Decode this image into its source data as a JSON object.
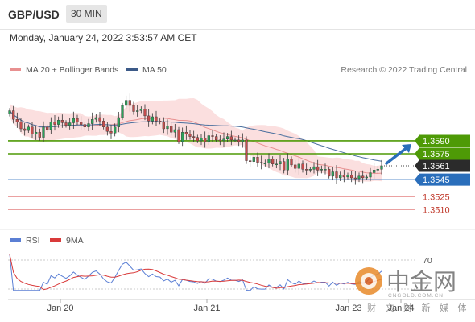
{
  "header": {
    "pair": "GBP/USD",
    "timeframe": "30 MIN"
  },
  "timestamp": "Monday, January 24, 2022 3:53:57 AM CET",
  "legend": {
    "bollinger": "MA 20 + Bollinger Bands",
    "ma50": "MA 50",
    "credit": "Research © 2022 Trading Central"
  },
  "rsi_legend": {
    "rsi": "RSI",
    "ma9": "9MA"
  },
  "watermark": {
    "logo": "中金网",
    "domain": "CNGOLD.COM.CN",
    "tagline": "财 文 财 新 媒 体"
  },
  "colors": {
    "green": "#4e9a06",
    "blue": "#2a6ebb",
    "red": "#d84c4c",
    "current": "#2b2b2b",
    "bullish": "#2ba35a",
    "bearish": "#c44d4d",
    "band": "#fbdcdc",
    "ma20": "#e89090",
    "ma50": "#4a6f9e",
    "rsi": "#5b7fd4",
    "ma9": "#d93a3a"
  },
  "chart_data": [
    {
      "type": "candlestick",
      "title": "GBP/USD",
      "x_labels": [
        "Jan 20",
        "Jan 21",
        "Jan 23",
        "Jan 24"
      ],
      "ylim": [
        1.349,
        1.366
      ],
      "levels": [
        {
          "value": 1.359,
          "label": "1.3590",
          "kind": "resistance"
        },
        {
          "value": 1.3575,
          "label": "1.3575",
          "kind": "resistance"
        },
        {
          "value": 1.3561,
          "label": "1.3561",
          "kind": "current"
        },
        {
          "value": 1.3545,
          "label": "1.3545",
          "kind": "pivot"
        },
        {
          "value": 1.3525,
          "label": "1.3525",
          "kind": "support"
        },
        {
          "value": 1.351,
          "label": "1.3510",
          "kind": "support"
        }
      ],
      "close": [
        1.3625,
        1.3615,
        1.3612,
        1.3604,
        1.3602,
        1.3606,
        1.3598,
        1.36,
        1.3594,
        1.3606,
        1.3603,
        1.3612,
        1.3609,
        1.3614,
        1.3611,
        1.3608,
        1.3611,
        1.3616,
        1.3612,
        1.3609,
        1.3606,
        1.361,
        1.3615,
        1.3617,
        1.3613,
        1.3606,
        1.3601,
        1.3599,
        1.3606,
        1.3617,
        1.3631,
        1.3637,
        1.3631,
        1.3624,
        1.3625,
        1.3627,
        1.3619,
        1.3613,
        1.3618,
        1.3613,
        1.3612,
        1.3604,
        1.3607,
        1.36,
        1.3603,
        1.3589,
        1.36,
        1.3598,
        1.3595,
        1.3594,
        1.359,
        1.3593,
        1.3589,
        1.3596,
        1.3595,
        1.3591,
        1.359,
        1.3592,
        1.3595,
        1.3591,
        1.3591,
        1.3589,
        1.3591,
        1.3567,
        1.3566,
        1.3571,
        1.3565,
        1.3564,
        1.3564,
        1.3569,
        1.3563,
        1.3563,
        1.3566,
        1.3556,
        1.3569,
        1.3562,
        1.3558,
        1.3563,
        1.3557,
        1.3556,
        1.3557,
        1.356,
        1.3556,
        1.3557,
        1.3557,
        1.3549,
        1.3554,
        1.3547,
        1.355,
        1.3548,
        1.355,
        1.3547,
        1.3546,
        1.3549,
        1.3547,
        1.3548,
        1.3553,
        1.3556,
        1.3557,
        1.3561
      ],
      "bollinger": {
        "period": 20,
        "ma50_period": 50
      },
      "forecast_arrow": {
        "from": 1.3561,
        "to": 1.359
      }
    },
    {
      "type": "line",
      "title": "RSI",
      "levels": [
        30,
        70
      ],
      "ylim": [
        20,
        80
      ],
      "series": [
        {
          "name": "RSI"
        },
        {
          "name": "9MA"
        }
      ]
    }
  ]
}
